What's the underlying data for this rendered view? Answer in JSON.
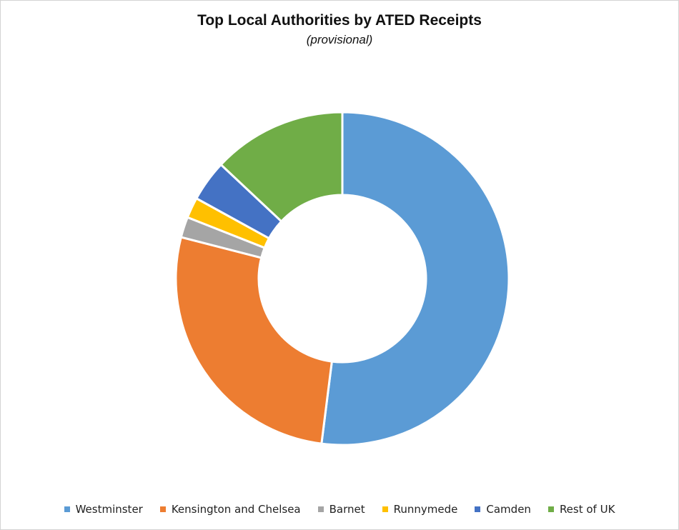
{
  "chart_data": {
    "type": "pie",
    "title": "Top Local Authorities by ATED Receipts",
    "subtitle": "(provisional)",
    "hole": "donut",
    "legend_position": "bottom",
    "series": [
      {
        "name": "Westminster",
        "value": 52,
        "color": "#5b9bd5"
      },
      {
        "name": "Kensington and Chelsea",
        "value": 27,
        "color": "#ed7d31"
      },
      {
        "name": "Barnet",
        "value": 2,
        "color": "#a5a5a5"
      },
      {
        "name": "Runnymede",
        "value": 2,
        "color": "#ffc000"
      },
      {
        "name": "Camden",
        "value": 4,
        "color": "#4472c4"
      },
      {
        "name": "Rest of UK",
        "value": 13,
        "color": "#70ad47"
      }
    ]
  }
}
